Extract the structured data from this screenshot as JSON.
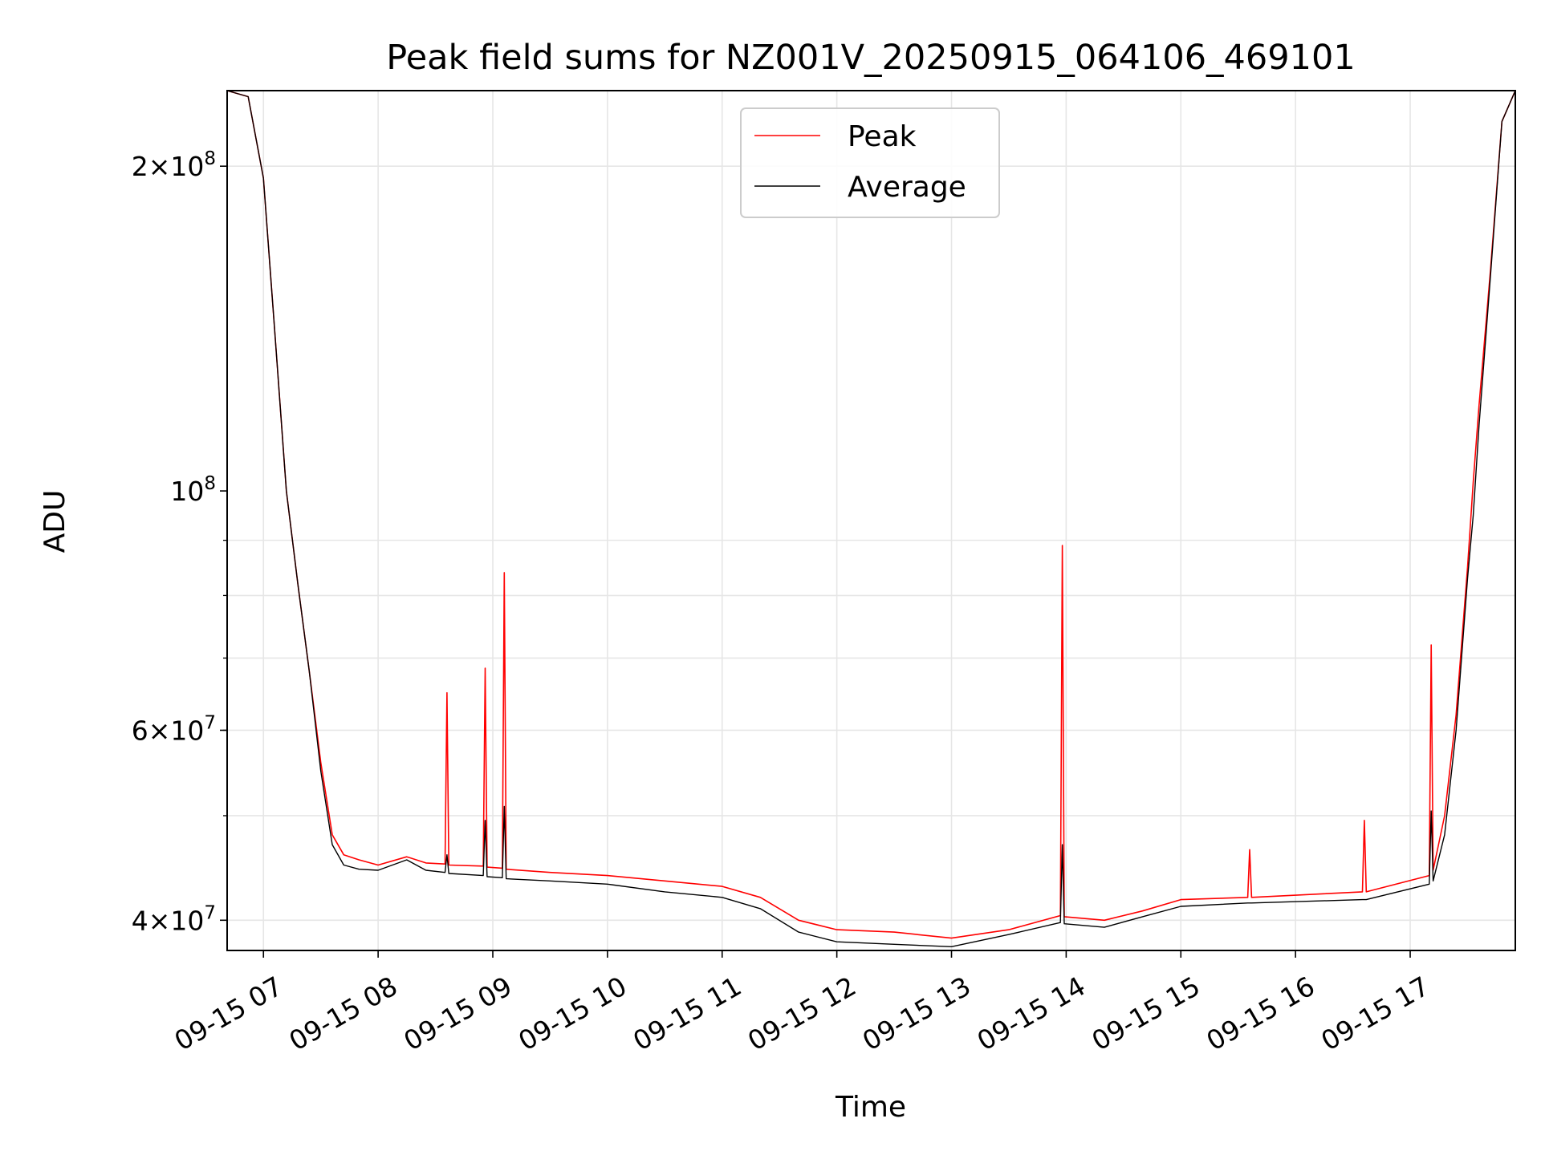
{
  "chart_data": {
    "type": "line",
    "title": "Peak field sums for NZ001V_20250915_064106_469101",
    "xlabel": "Time",
    "ylabel": "ADU",
    "yscale": "log",
    "xlim": [
      "2025-09-15 06:41",
      "2025-09-15 17:55"
    ],
    "ylim": [
      37500000,
      235000000
    ],
    "grid": true,
    "legend_position": "top-center",
    "x_ticks": [
      "09-15 07",
      "09-15 08",
      "09-15 09",
      "09-15 10",
      "09-15 11",
      "09-15 12",
      "09-15 13",
      "09-15 14",
      "09-15 15",
      "09-15 16",
      "09-15 17"
    ],
    "y_ticks": [
      {
        "value": 40000000,
        "mantissa": "4",
        "exponent": "7"
      },
      {
        "value": 60000000,
        "mantissa": "6",
        "exponent": "7"
      },
      {
        "value": 100000000,
        "mantissa": "",
        "exponent": "8"
      },
      {
        "value": 200000000,
        "mantissa": "2",
        "exponent": "8"
      }
    ],
    "colors": {
      "peak": "#ff0000",
      "average": "#000000",
      "grid": "#e6e6e6"
    },
    "series": [
      {
        "name": "Peak",
        "color": "#ff0000",
        "points": [
          [
            "2025-09-15 06:41",
            235000000
          ],
          [
            "2025-09-15 06:52",
            232000000
          ],
          [
            "2025-09-15 07:00",
            195000000
          ],
          [
            "2025-09-15 07:06",
            140000000
          ],
          [
            "2025-09-15 07:12",
            100000000
          ],
          [
            "2025-09-15 07:18",
            82000000
          ],
          [
            "2025-09-15 07:24",
            68000000
          ],
          [
            "2025-09-15 07:30",
            56000000
          ],
          [
            "2025-09-15 07:36",
            48000000
          ],
          [
            "2025-09-15 07:42",
            46000000
          ],
          [
            "2025-09-15 07:50",
            45500000
          ],
          [
            "2025-09-15 08:00",
            45000000
          ],
          [
            "2025-09-15 08:15",
            45800000
          ],
          [
            "2025-09-15 08:25",
            45200000
          ],
          [
            "2025-09-15 08:35",
            45100000
          ],
          [
            "2025-09-15 08:36",
            65000000
          ],
          [
            "2025-09-15 08:37",
            45000000
          ],
          [
            "2025-09-15 08:55",
            44900000
          ],
          [
            "2025-09-15 08:56",
            68500000
          ],
          [
            "2025-09-15 08:57",
            44800000
          ],
          [
            "2025-09-15 09:05",
            44700000
          ],
          [
            "2025-09-15 09:06",
            84000000
          ],
          [
            "2025-09-15 09:07",
            44600000
          ],
          [
            "2025-09-15 09:30",
            44300000
          ],
          [
            "2025-09-15 10:00",
            44000000
          ],
          [
            "2025-09-15 10:30",
            43500000
          ],
          [
            "2025-09-15 11:00",
            43000000
          ],
          [
            "2025-09-15 11:20",
            42000000
          ],
          [
            "2025-09-15 11:40",
            40000000
          ],
          [
            "2025-09-15 12:00",
            39200000
          ],
          [
            "2025-09-15 12:30",
            39000000
          ],
          [
            "2025-09-15 13:00",
            38500000
          ],
          [
            "2025-09-15 13:30",
            39200000
          ],
          [
            "2025-09-15 13:57",
            40400000
          ],
          [
            "2025-09-15 13:58",
            89000000
          ],
          [
            "2025-09-15 13:59",
            40300000
          ],
          [
            "2025-09-15 14:20",
            40000000
          ],
          [
            "2025-09-15 14:40",
            40800000
          ],
          [
            "2025-09-15 15:00",
            41800000
          ],
          [
            "2025-09-15 15:35",
            42000000
          ],
          [
            "2025-09-15 15:36",
            46500000
          ],
          [
            "2025-09-15 15:37",
            42000000
          ],
          [
            "2025-09-15 16:35",
            42500000
          ],
          [
            "2025-09-15 16:36",
            49500000
          ],
          [
            "2025-09-15 16:37",
            42500000
          ],
          [
            "2025-09-15 17:10",
            44000000
          ],
          [
            "2025-09-15 17:11",
            72000000
          ],
          [
            "2025-09-15 17:12",
            44500000
          ],
          [
            "2025-09-15 17:18",
            50000000
          ],
          [
            "2025-09-15 17:24",
            62000000
          ],
          [
            "2025-09-15 17:30",
            85000000
          ],
          [
            "2025-09-15 17:33",
            102000000
          ],
          [
            "2025-09-15 17:36",
            120000000
          ],
          [
            "2025-09-15 17:42",
            160000000
          ],
          [
            "2025-09-15 17:48",
            220000000
          ],
          [
            "2025-09-15 17:55",
            235000000
          ]
        ]
      },
      {
        "name": "Average",
        "color": "#000000",
        "points": [
          [
            "2025-09-15 06:41",
            235000000
          ],
          [
            "2025-09-15 06:52",
            232000000
          ],
          [
            "2025-09-15 07:00",
            195000000
          ],
          [
            "2025-09-15 07:06",
            140000000
          ],
          [
            "2025-09-15 07:12",
            100000000
          ],
          [
            "2025-09-15 07:18",
            82000000
          ],
          [
            "2025-09-15 07:24",
            68000000
          ],
          [
            "2025-09-15 07:30",
            55000000
          ],
          [
            "2025-09-15 07:36",
            47000000
          ],
          [
            "2025-09-15 07:42",
            45000000
          ],
          [
            "2025-09-15 07:50",
            44600000
          ],
          [
            "2025-09-15 08:00",
            44500000
          ],
          [
            "2025-09-15 08:15",
            45500000
          ],
          [
            "2025-09-15 08:25",
            44500000
          ],
          [
            "2025-09-15 08:35",
            44300000
          ],
          [
            "2025-09-15 08:36",
            46000000
          ],
          [
            "2025-09-15 08:37",
            44200000
          ],
          [
            "2025-09-15 08:55",
            44000000
          ],
          [
            "2025-09-15 08:56",
            49500000
          ],
          [
            "2025-09-15 08:57",
            43900000
          ],
          [
            "2025-09-15 09:05",
            43800000
          ],
          [
            "2025-09-15 09:06",
            51000000
          ],
          [
            "2025-09-15 09:07",
            43700000
          ],
          [
            "2025-09-15 09:30",
            43500000
          ],
          [
            "2025-09-15 10:00",
            43200000
          ],
          [
            "2025-09-15 10:30",
            42500000
          ],
          [
            "2025-09-15 11:00",
            42000000
          ],
          [
            "2025-09-15 11:20",
            41000000
          ],
          [
            "2025-09-15 11:40",
            39000000
          ],
          [
            "2025-09-15 12:00",
            38200000
          ],
          [
            "2025-09-15 12:30",
            38000000
          ],
          [
            "2025-09-15 13:00",
            37800000
          ],
          [
            "2025-09-15 13:30",
            38800000
          ],
          [
            "2025-09-15 13:57",
            39800000
          ],
          [
            "2025-09-15 13:58",
            47000000
          ],
          [
            "2025-09-15 13:59",
            39700000
          ],
          [
            "2025-09-15 14:20",
            39400000
          ],
          [
            "2025-09-15 14:40",
            40300000
          ],
          [
            "2025-09-15 15:00",
            41200000
          ],
          [
            "2025-09-15 15:35",
            41500000
          ],
          [
            "2025-09-15 15:36",
            41500000
          ],
          [
            "2025-09-15 15:37",
            41500000
          ],
          [
            "2025-09-15 16:35",
            41800000
          ],
          [
            "2025-09-15 16:36",
            41800000
          ],
          [
            "2025-09-15 16:37",
            41800000
          ],
          [
            "2025-09-15 17:10",
            43200000
          ],
          [
            "2025-09-15 17:11",
            50500000
          ],
          [
            "2025-09-15 17:12",
            43500000
          ],
          [
            "2025-09-15 17:18",
            48000000
          ],
          [
            "2025-09-15 17:24",
            60000000
          ],
          [
            "2025-09-15 17:30",
            83000000
          ],
          [
            "2025-09-15 17:33",
            95000000
          ],
          [
            "2025-09-15 17:36",
            115000000
          ],
          [
            "2025-09-15 17:42",
            158000000
          ],
          [
            "2025-09-15 17:48",
            220000000
          ],
          [
            "2025-09-15 17:55",
            235000000
          ]
        ]
      }
    ]
  }
}
